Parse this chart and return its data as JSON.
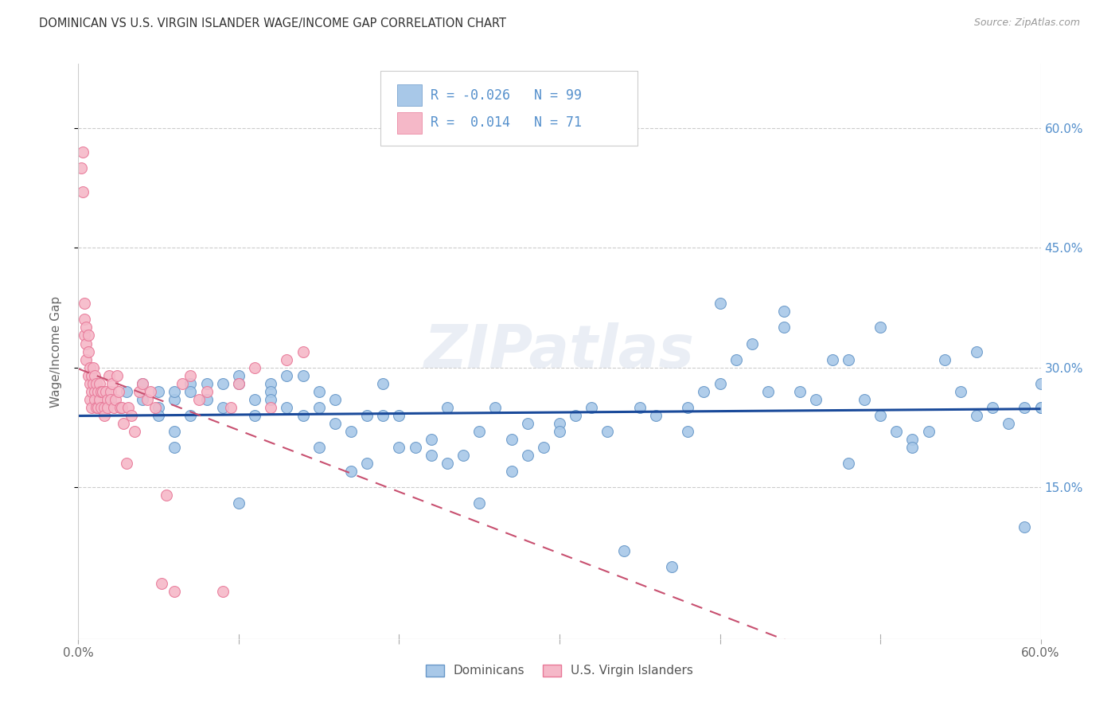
{
  "title": "DOMINICAN VS U.S. VIRGIN ISLANDER WAGE/INCOME GAP CORRELATION CHART",
  "source": "Source: ZipAtlas.com",
  "ylabel": "Wage/Income Gap",
  "ytick_labels": [
    "60.0%",
    "45.0%",
    "30.0%",
    "15.0%"
  ],
  "ytick_values": [
    0.6,
    0.45,
    0.3,
    0.15
  ],
  "xlim": [
    0.0,
    0.6
  ],
  "ylim": [
    -0.04,
    0.68
  ],
  "legend_label1": "Dominicans",
  "legend_label2": "U.S. Virgin Islanders",
  "R1": "-0.026",
  "N1": "99",
  "R2": "0.014",
  "N2": "71",
  "color_blue": "#a8c8e8",
  "color_pink": "#f5b8c8",
  "color_blue_edge": "#6898c8",
  "color_pink_edge": "#e87898",
  "line_blue": "#1a4a9a",
  "line_pink": "#c85070",
  "watermark": "ZIPatlas",
  "blue_scatter_x": [
    0.02,
    0.03,
    0.04,
    0.04,
    0.05,
    0.05,
    0.05,
    0.06,
    0.06,
    0.06,
    0.06,
    0.07,
    0.07,
    0.07,
    0.08,
    0.08,
    0.09,
    0.09,
    0.1,
    0.1,
    0.1,
    0.11,
    0.11,
    0.12,
    0.12,
    0.12,
    0.13,
    0.13,
    0.14,
    0.14,
    0.15,
    0.15,
    0.15,
    0.16,
    0.16,
    0.17,
    0.17,
    0.18,
    0.18,
    0.19,
    0.19,
    0.2,
    0.2,
    0.21,
    0.22,
    0.22,
    0.23,
    0.23,
    0.24,
    0.25,
    0.25,
    0.26,
    0.27,
    0.27,
    0.28,
    0.28,
    0.29,
    0.3,
    0.3,
    0.31,
    0.32,
    0.33,
    0.34,
    0.35,
    0.36,
    0.37,
    0.38,
    0.39,
    0.4,
    0.4,
    0.41,
    0.42,
    0.43,
    0.44,
    0.45,
    0.46,
    0.47,
    0.48,
    0.49,
    0.5,
    0.51,
    0.52,
    0.53,
    0.54,
    0.55,
    0.56,
    0.57,
    0.58,
    0.59,
    0.59,
    0.6,
    0.6,
    0.5,
    0.52,
    0.44,
    0.48,
    0.38,
    0.56,
    0.6
  ],
  "blue_scatter_y": [
    0.26,
    0.27,
    0.26,
    0.28,
    0.27,
    0.25,
    0.24,
    0.26,
    0.27,
    0.22,
    0.2,
    0.28,
    0.27,
    0.24,
    0.28,
    0.26,
    0.28,
    0.25,
    0.29,
    0.28,
    0.13,
    0.26,
    0.24,
    0.28,
    0.27,
    0.26,
    0.29,
    0.25,
    0.29,
    0.24,
    0.27,
    0.25,
    0.2,
    0.26,
    0.23,
    0.22,
    0.17,
    0.24,
    0.18,
    0.28,
    0.24,
    0.24,
    0.2,
    0.2,
    0.21,
    0.19,
    0.25,
    0.18,
    0.19,
    0.13,
    0.22,
    0.25,
    0.21,
    0.17,
    0.23,
    0.19,
    0.2,
    0.23,
    0.22,
    0.24,
    0.25,
    0.22,
    0.07,
    0.25,
    0.24,
    0.05,
    0.25,
    0.27,
    0.28,
    0.38,
    0.31,
    0.33,
    0.27,
    0.35,
    0.27,
    0.26,
    0.31,
    0.31,
    0.26,
    0.24,
    0.22,
    0.21,
    0.22,
    0.31,
    0.27,
    0.24,
    0.25,
    0.23,
    0.1,
    0.25,
    0.28,
    0.25,
    0.35,
    0.2,
    0.37,
    0.18,
    0.22,
    0.32,
    0.25
  ],
  "pink_scatter_x": [
    0.002,
    0.003,
    0.003,
    0.004,
    0.004,
    0.004,
    0.005,
    0.005,
    0.005,
    0.006,
    0.006,
    0.006,
    0.007,
    0.007,
    0.007,
    0.008,
    0.008,
    0.008,
    0.009,
    0.009,
    0.01,
    0.01,
    0.01,
    0.011,
    0.011,
    0.012,
    0.012,
    0.013,
    0.013,
    0.014,
    0.014,
    0.015,
    0.016,
    0.016,
    0.017,
    0.018,
    0.018,
    0.019,
    0.02,
    0.02,
    0.021,
    0.022,
    0.023,
    0.024,
    0.025,
    0.026,
    0.027,
    0.028,
    0.03,
    0.031,
    0.033,
    0.035,
    0.038,
    0.04,
    0.043,
    0.045,
    0.048,
    0.052,
    0.055,
    0.06,
    0.065,
    0.07,
    0.075,
    0.08,
    0.09,
    0.095,
    0.1,
    0.11,
    0.12,
    0.13,
    0.14
  ],
  "pink_scatter_y": [
    0.55,
    0.52,
    0.57,
    0.34,
    0.36,
    0.38,
    0.33,
    0.31,
    0.35,
    0.32,
    0.29,
    0.34,
    0.3,
    0.28,
    0.26,
    0.29,
    0.27,
    0.25,
    0.28,
    0.3,
    0.27,
    0.29,
    0.26,
    0.28,
    0.25,
    0.27,
    0.25,
    0.28,
    0.26,
    0.27,
    0.25,
    0.27,
    0.25,
    0.24,
    0.27,
    0.26,
    0.25,
    0.29,
    0.27,
    0.26,
    0.28,
    0.25,
    0.26,
    0.29,
    0.27,
    0.25,
    0.25,
    0.23,
    0.18,
    0.25,
    0.24,
    0.22,
    0.27,
    0.28,
    0.26,
    0.27,
    0.25,
    0.03,
    0.14,
    0.02,
    0.28,
    0.29,
    0.26,
    0.27,
    0.02,
    0.25,
    0.28,
    0.3,
    0.25,
    0.31,
    0.32
  ]
}
